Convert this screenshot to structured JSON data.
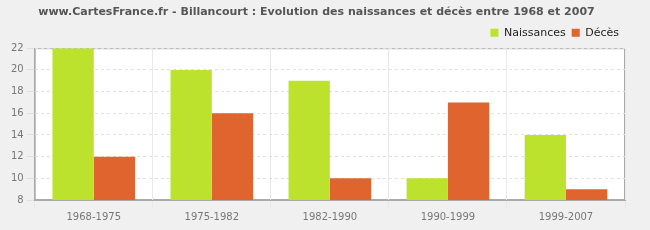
{
  "chart_data": {
    "type": "bar",
    "title": "www.CartesFrance.fr - Billancourt : Evolution des naissances et décès entre 1968 et 2007",
    "categories": [
      "1968-1975",
      "1975-1982",
      "1982-1990",
      "1990-1999",
      "1999-2007"
    ],
    "series": [
      {
        "name": "Naissances",
        "color": "#bde22e",
        "values": [
          22,
          20,
          19,
          10,
          14
        ]
      },
      {
        "name": "Décès",
        "color": "#e0642e",
        "values": [
          12,
          16,
          10,
          17,
          9
        ]
      }
    ],
    "ylim": [
      8,
      22
    ],
    "yticks": [
      8,
      10,
      12,
      14,
      16,
      18,
      20,
      22
    ],
    "grid": true,
    "legend": "upper right"
  }
}
